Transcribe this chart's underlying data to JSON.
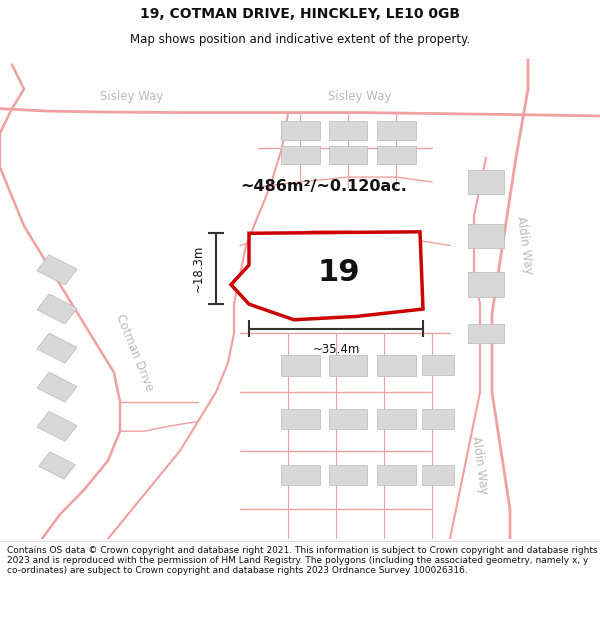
{
  "title": "19, COTMAN DRIVE, HINCKLEY, LE10 0GB",
  "subtitle": "Map shows position and indicative extent of the property.",
  "footer": "Contains OS data © Crown copyright and database right 2021. This information is subject to Crown copyright and database rights 2023 and is reproduced with the permission of HM Land Registry. The polygons (including the associated geometry, namely x, y co-ordinates) are subject to Crown copyright and database rights 2023 Ordnance Survey 100026316.",
  "map_bg": "#f7f5f5",
  "plot_outline_color": "#cc0000",
  "plot_fill_color": "#ffffff",
  "road_color": "#f0a0a0",
  "building_color": "#d8d8d8",
  "building_edge_color": "#b8b8b8",
  "area_label": "~486m²/~0.120ac.",
  "number_label": "19",
  "dim_h_label": "~18.3m",
  "dim_w_label": "~35.4m",
  "road_label_color": "#bbbbbb",
  "text_color": "#111111",
  "title_fontsize": 10,
  "subtitle_fontsize": 8.5,
  "footer_fontsize": 6.5
}
